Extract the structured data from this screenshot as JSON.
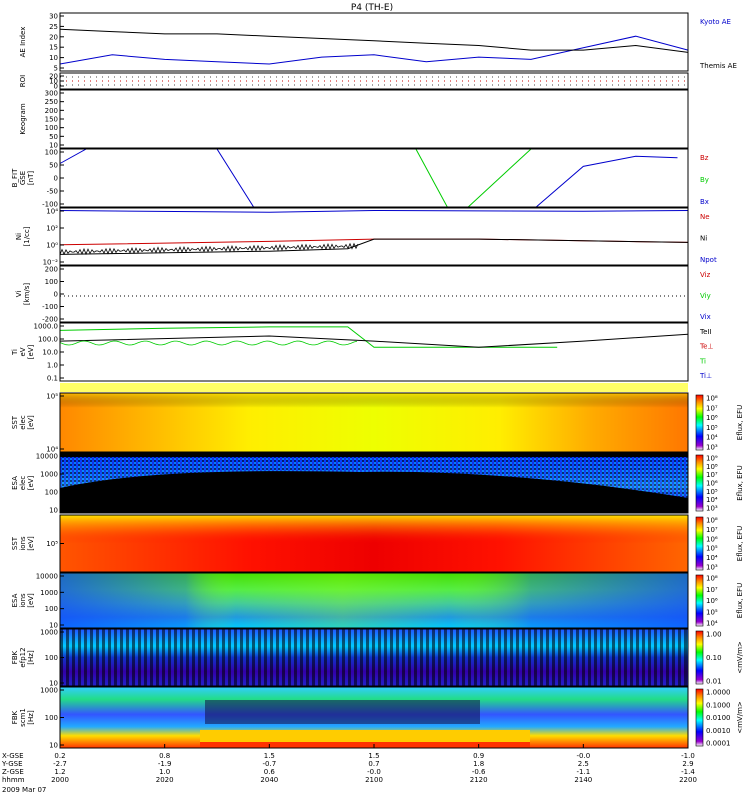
{
  "title": "P4 (TH-E)",
  "date_label": "2009 Mar 07",
  "time_axis": {
    "start": "20:00",
    "end": "22:00",
    "tick_labels": [
      "2000",
      "2020",
      "2040",
      "2100",
      "2120",
      "2140",
      "2200"
    ],
    "rows": [
      {
        "label": "X-GSE",
        "values": [
          "0.2",
          "0.8",
          "1.5",
          "1.5",
          "0.9",
          "-0.0",
          "-1.0"
        ]
      },
      {
        "label": "Y-GSE",
        "values": [
          "-2.7",
          "-1.9",
          "-0.7",
          "0.7",
          "1.8",
          "2.5",
          "2.9"
        ]
      },
      {
        "label": "Z-GSE",
        "values": [
          "1.2",
          "1.0",
          "0.6",
          "-0.0",
          "-0.6",
          "-1.1",
          "-1.4"
        ]
      },
      {
        "label": "hhmm",
        "values": [
          "2000",
          "2020",
          "2040",
          "2100",
          "2120",
          "2140",
          "2200"
        ]
      }
    ]
  },
  "panels": [
    {
      "id": "ae",
      "ylabel": [
        "AE Index"
      ],
      "ticks": [
        "30",
        "25",
        "20",
        "15",
        "10",
        "5"
      ],
      "legend": [
        {
          "text": "Kyoto AE",
          "color": "#0000cc"
        },
        {
          "text": "Themis AE",
          "color": "#000000"
        }
      ]
    },
    {
      "id": "roi",
      "ylabel": [
        "ROI"
      ],
      "ticks": [
        "20",
        "10",
        "0"
      ],
      "legend": []
    },
    {
      "id": "keogram",
      "ylabel": [
        "Keogram"
      ],
      "ticks": [
        "300",
        "250",
        "200",
        "150",
        "100",
        "50",
        "10"
      ],
      "legend": []
    },
    {
      "id": "bfit",
      "ylabel": [
        "B_FIT",
        "GSE",
        "[nT]"
      ],
      "ticks": [
        "100",
        "50",
        "0",
        "-50",
        "-100"
      ],
      "legend": [
        {
          "text": "Bz",
          "color": "#cc0000"
        },
        {
          "text": "By",
          "color": "#00cc00"
        },
        {
          "text": "Bx",
          "color": "#0000cc"
        }
      ]
    },
    {
      "id": "ni",
      "ylabel": [
        "Ni",
        "[1/cc]"
      ],
      "ticks": [
        "10⁴",
        "10²",
        "10⁰",
        "10⁻²"
      ],
      "legend": [
        {
          "text": "Ne",
          "color": "#cc0000"
        },
        {
          "text": "Ni",
          "color": "#000000"
        },
        {
          "text": "Npot",
          "color": "#0000cc"
        }
      ]
    },
    {
      "id": "vi",
      "ylabel": [
        "Vi",
        "[km/s]"
      ],
      "ticks": [
        "200",
        "100",
        "0",
        "-100",
        "-200"
      ],
      "legend": [
        {
          "text": "Viz",
          "color": "#cc0000"
        },
        {
          "text": "Viy",
          "color": "#00cc00"
        },
        {
          "text": "Vix",
          "color": "#0000cc"
        }
      ]
    },
    {
      "id": "ti",
      "ylabel": [
        "Ti",
        "eV",
        "[eV]"
      ],
      "ticks": [
        "1000.0",
        "100.0",
        "10.0",
        "1.0",
        "0.1"
      ],
      "legend": [
        {
          "text": "TeII",
          "color": "#000000"
        },
        {
          "text": "Te⊥",
          "color": "#cc0000"
        },
        {
          "text": "Ti",
          "color": "#00cc00"
        },
        {
          "text": "Ti⊥",
          "color": "#0000cc"
        }
      ]
    },
    {
      "id": "sst_e",
      "ylabel": [
        "SST",
        "elec",
        "[eV]"
      ],
      "ticks": [
        "10⁵",
        "10⁴"
      ],
      "cbar": {
        "label": "Eflux, EFU",
        "ticks": [
          "10⁸",
          "10⁷",
          "10⁶",
          "10⁵",
          "10⁴",
          "10³"
        ]
      }
    },
    {
      "id": "esa_e",
      "ylabel": [
        "ESA",
        "elec",
        "[eV]"
      ],
      "ticks": [
        "10000",
        "1000",
        "100",
        "10"
      ],
      "cbar": {
        "label": "Eflux, EFU",
        "ticks": [
          "10⁹",
          "10⁸",
          "10⁷",
          "10⁶",
          "10⁵",
          "10⁴",
          "10³"
        ]
      }
    },
    {
      "id": "sst_i",
      "ylabel": [
        "SST",
        "ions",
        "[eV]"
      ],
      "ticks": [
        "10⁵"
      ],
      "cbar": {
        "label": "Eflux, EFU",
        "ticks": [
          "10⁸",
          "10⁷",
          "10⁶",
          "10⁵",
          "10⁴",
          "10³"
        ]
      }
    },
    {
      "id": "esa_i",
      "ylabel": [
        "ESA",
        "ions",
        "[eV]"
      ],
      "ticks": [
        "10000",
        "1000",
        "100",
        "10"
      ],
      "cbar": {
        "label": "Eflux, EFU",
        "ticks": [
          "10⁸",
          "10⁷",
          "10⁶",
          "10⁵",
          "10⁴"
        ]
      }
    },
    {
      "id": "fbk_e",
      "ylabel": [
        "FBK",
        "efp12",
        "[Hz]"
      ],
      "ticks": [
        "1000",
        "100",
        "10"
      ],
      "cbar": {
        "label": "<mV/m>",
        "ticks": [
          "1.00",
          "0.10",
          "0.01"
        ]
      }
    },
    {
      "id": "fbk_s",
      "ylabel": [
        "FBK",
        "scm1",
        "[Hz]"
      ],
      "ticks": [
        "1000",
        "100",
        "10"
      ],
      "cbar": {
        "label": "<mV/m>",
        "ticks": [
          "1.0000",
          "0.1000",
          "0.0100",
          "0.0010",
          "0.0001"
        ]
      }
    }
  ],
  "chart_data": {
    "type": "line",
    "title": "P4 (TH-E)",
    "x_unit": "UT hhmm, 2009 Mar 07",
    "xlim": [
      "2000",
      "2200"
    ],
    "subplots": [
      {
        "id": "ae",
        "type": "line",
        "ylim": [
          5,
          30
        ],
        "x": [
          "2000",
          "2010",
          "2020",
          "2030",
          "2040",
          "2050",
          "2100",
          "2110",
          "2120",
          "2130",
          "2140",
          "2150",
          "2200"
        ],
        "series": [
          {
            "name": "Kyoto AE",
            "color": "#0000cc",
            "values": [
              8,
              12,
              10,
              9,
              8,
              11,
              12,
              9,
              11,
              10,
              15,
              20,
              14
            ]
          },
          {
            "name": "Themis AE",
            "color": "#000000",
            "values": [
              23,
              22,
              21,
              21,
              20,
              19,
              18,
              17,
              16,
              14,
              14,
              16,
              13
            ]
          }
        ]
      },
      {
        "id": "bfit",
        "type": "line",
        "ylim": [
          -100,
          100
        ],
        "series": [
          {
            "name": "Bx",
            "color": "#0000cc",
            "x": [
              "2000",
              "2005",
              "2030",
              "2037",
              "2131",
              "2140",
              "2150",
              "2158"
            ],
            "values": [
              50,
              100,
              100,
              -100,
              -100,
              40,
              75,
              70
            ]
          },
          {
            "name": "By",
            "color": "#00cc00",
            "x": [
              "2108",
              "2114",
              "2118",
              "2130"
            ],
            "values": [
              100,
              -100,
              -100,
              100
            ]
          }
        ]
      },
      {
        "id": "ni",
        "type": "line",
        "ylim": [
          "1e-3",
          "1e4"
        ],
        "yscale": "log",
        "series": [
          {
            "name": "Npot",
            "color": "#0000cc",
            "x": [
              "2000",
              "2040",
              "2100",
              "2140",
              "2200"
            ],
            "values": [
              5000,
              3000,
              5000,
              4000,
              5000
            ]
          },
          {
            "name": "Ne",
            "color": "#cc0000",
            "x": [
              "2000",
              "2040",
              "2100",
              "2120",
              "2200"
            ],
            "values": [
              0.3,
              0.8,
              1.5,
              1.5,
              0.6
            ]
          },
          {
            "name": "Ni",
            "color": "#000000",
            "x": [
              "2000",
              "2040",
              "2055",
              "2100",
              "2120",
              "2200"
            ],
            "values": [
              0.02,
              0.05,
              0.1,
              1.5,
              1.5,
              0.6
            ]
          }
        ]
      },
      {
        "id": "ti",
        "type": "line",
        "ylim": [
          0.1,
          3000
        ],
        "yscale": "log",
        "series": [
          {
            "name": "Ti",
            "color": "#00cc00",
            "x": [
              "2000",
              "2020",
              "2040",
              "2055",
              "2100",
              "2120",
              "2135"
            ],
            "values": [
              800,
              1200,
              1500,
              1500,
              40,
              40,
              40
            ]
          },
          {
            "name": "TeII",
            "color": "#000000",
            "x": [
              "2000",
              "2040",
              "2100",
              "2120",
              "2140",
              "2200"
            ],
            "values": [
              120,
              300,
              120,
              40,
              120,
              400
            ]
          }
        ]
      }
    ]
  }
}
